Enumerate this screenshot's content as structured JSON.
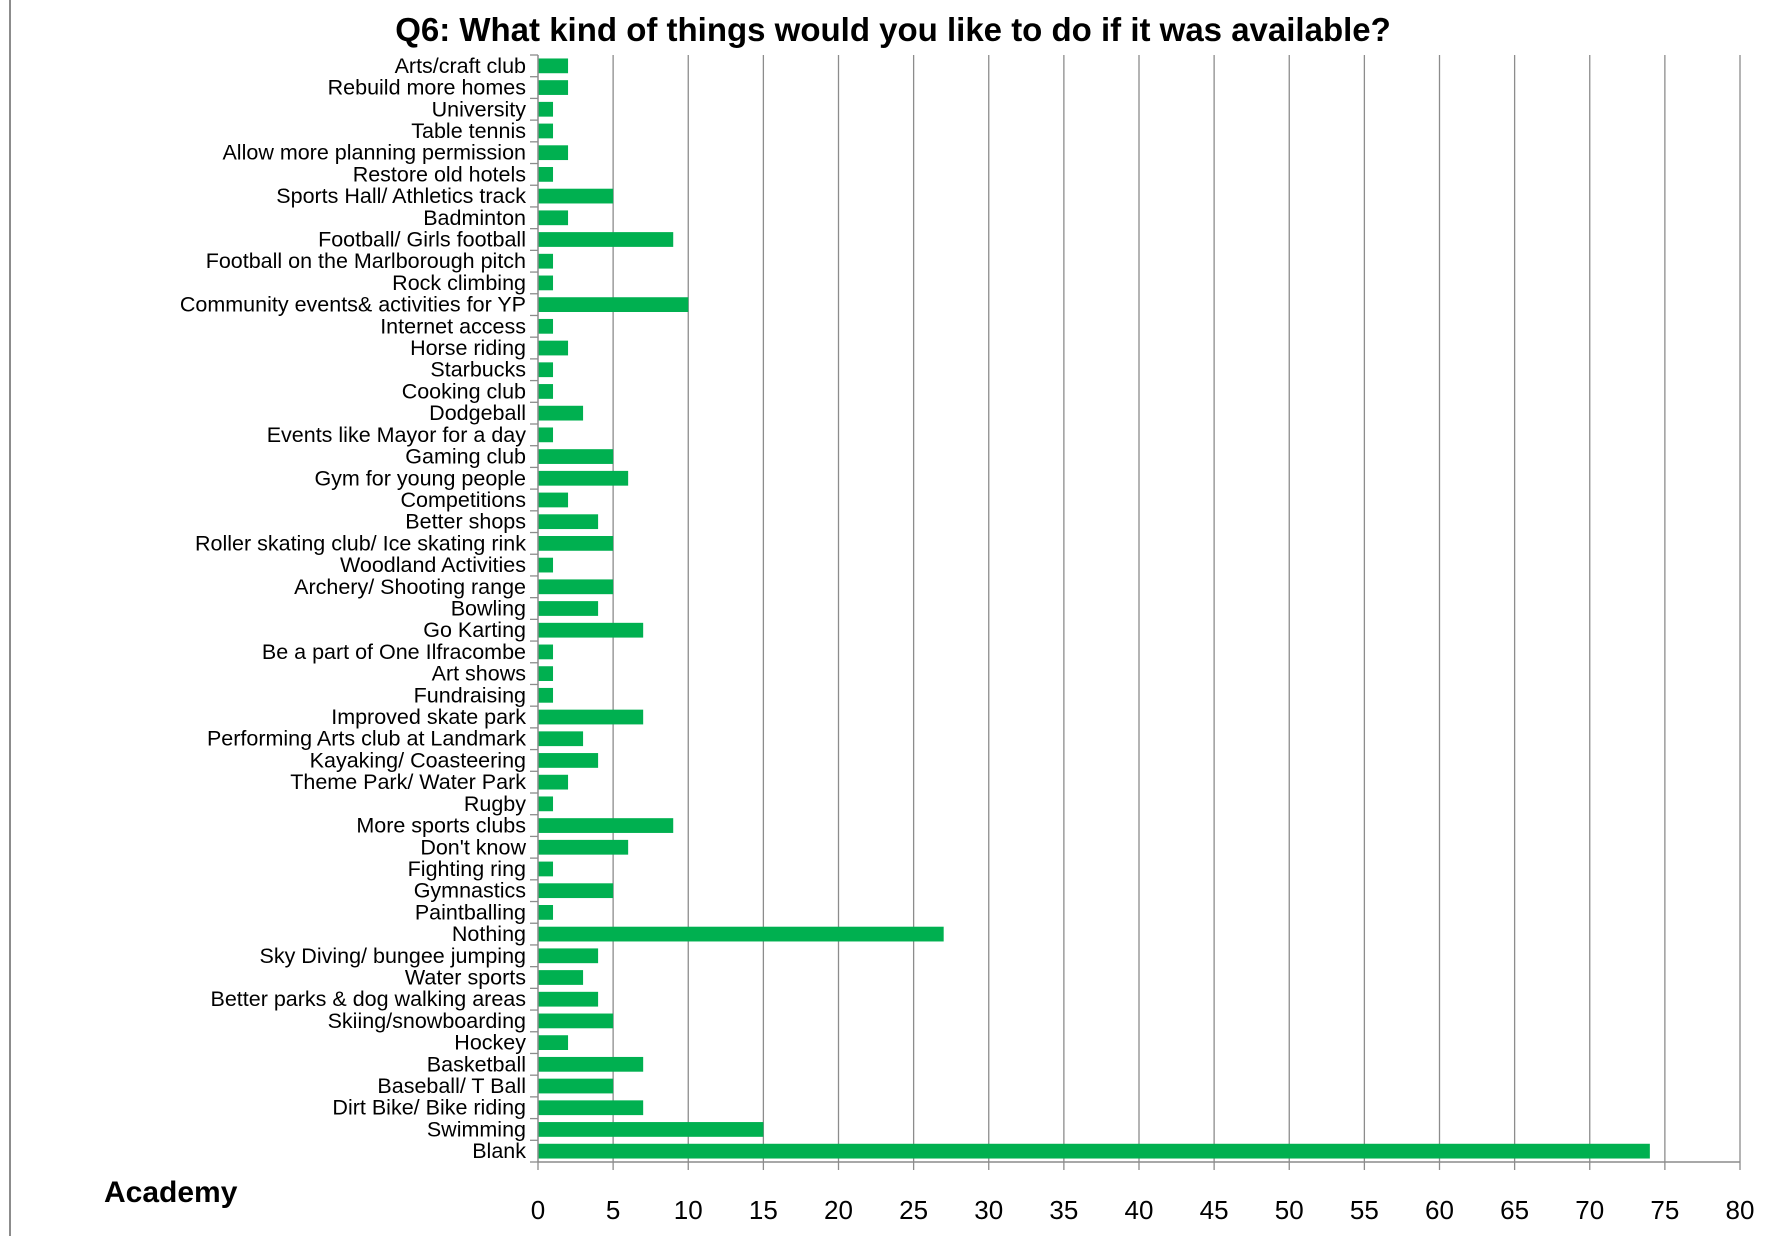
{
  "chart_data": {
    "type": "bar",
    "orientation": "horizontal",
    "title": "Q6: What kind of things would you like to do if it was available?",
    "corner_label": "Academy",
    "bar_color": "#00b050",
    "grid": true,
    "xlim": [
      0,
      80
    ],
    "x_ticks": [
      0,
      5,
      10,
      15,
      20,
      25,
      30,
      35,
      40,
      45,
      50,
      55,
      60,
      65,
      70,
      75,
      80
    ],
    "categories": [
      "Arts/craft club",
      "Rebuild more homes",
      "University",
      "Table tennis",
      "Allow more planning permission",
      "Restore old hotels",
      "Sports Hall/ Athletics track",
      "Badminton",
      "Football/ Girls football",
      "Football on the Marlborough pitch",
      "Rock climbing",
      "Community events& activities for YP",
      "Internet access",
      "Horse riding",
      "Starbucks",
      "Cooking club",
      "Dodgeball",
      "Events like Mayor for a day",
      "Gaming club",
      "Gym for young people",
      "Competitions",
      "Better shops",
      "Roller skating club/ Ice skating rink",
      "Woodland Activities",
      "Archery/ Shooting range",
      "Bowling",
      "Go Karting",
      "Be a part of One Ilfracombe",
      "Art shows",
      "Fundraising",
      "Improved skate park",
      "Performing Arts club at Landmark",
      "Kayaking/ Coasteering",
      "Theme Park/ Water Park",
      "Rugby",
      "More sports clubs",
      "Don't know",
      "Fighting ring",
      "Gymnastics",
      "Paintballing",
      "Nothing",
      "Sky Diving/ bungee jumping",
      "Water sports",
      "Better parks & dog walking areas",
      "Skiing/snowboarding",
      "Hockey",
      "Basketball",
      "Baseball/ T Ball",
      "Dirt Bike/ Bike riding",
      "Swimming",
      "Blank"
    ],
    "values": [
      2,
      2,
      1,
      1,
      2,
      1,
      5,
      2,
      9,
      1,
      1,
      10,
      1,
      2,
      1,
      1,
      3,
      1,
      5,
      6,
      2,
      4,
      5,
      1,
      5,
      4,
      7,
      1,
      1,
      1,
      7,
      3,
      4,
      2,
      1,
      9,
      6,
      1,
      5,
      1,
      27,
      4,
      3,
      4,
      5,
      2,
      7,
      5,
      7,
      15,
      74
    ]
  }
}
